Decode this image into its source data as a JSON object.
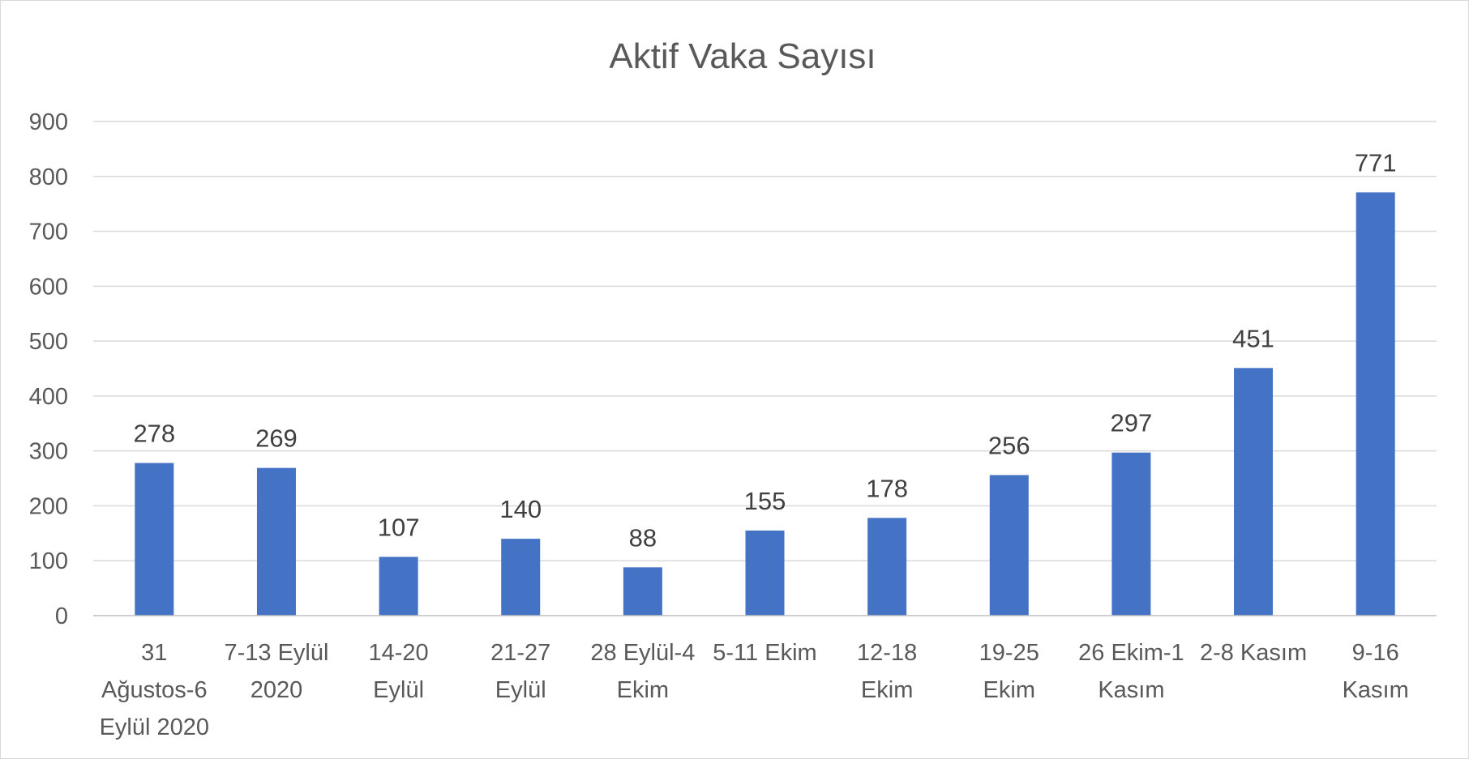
{
  "chart_data": {
    "type": "bar",
    "title": "Aktif Vaka Sayısı",
    "xlabel": "",
    "ylabel": "",
    "ylim": [
      0,
      900
    ],
    "yticks": [
      "0",
      "100",
      "200",
      "300",
      "400",
      "500",
      "600",
      "700",
      "800",
      "900"
    ],
    "grid": true,
    "legend": "none",
    "bar_color": "#4472C4",
    "categories": [
      [
        "31",
        "Ağustos-6",
        "Eylül 2020"
      ],
      [
        "7-13 Eylül",
        "2020"
      ],
      [
        "14-20",
        "Eylül"
      ],
      [
        "21-27",
        "Eylül"
      ],
      [
        "28 Eylül-4",
        "Ekim"
      ],
      [
        "5-11 Ekim"
      ],
      [
        "12-18",
        "Ekim"
      ],
      [
        "19-25",
        "Ekim"
      ],
      [
        "26 Ekim-1",
        "Kasım"
      ],
      [
        "2-8 Kasım"
      ],
      [
        "9-16",
        "Kasım"
      ]
    ],
    "values": [
      278,
      269,
      107,
      140,
      88,
      155,
      178,
      256,
      297,
      451,
      771
    ]
  }
}
